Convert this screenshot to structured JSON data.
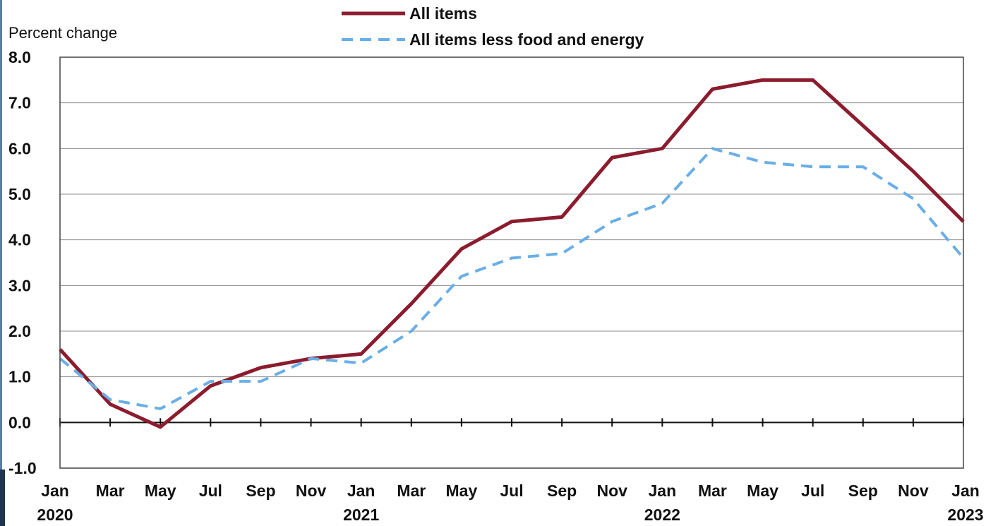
{
  "chart_data": {
    "type": "line",
    "ylabel": "Percent change",
    "ylim": [
      -1.0,
      8.0
    ],
    "yticks": [
      "-1.0",
      "0.0",
      "1.0",
      "2.0",
      "3.0",
      "4.0",
      "5.0",
      "6.0",
      "7.0",
      "8.0"
    ],
    "grid": true,
    "legend_position": "top-center",
    "x_tick_labels": [
      {
        "month": "Jan",
        "year": "2020"
      },
      {
        "month": "Mar",
        "year": ""
      },
      {
        "month": "May",
        "year": ""
      },
      {
        "month": "Jul",
        "year": ""
      },
      {
        "month": "Sep",
        "year": ""
      },
      {
        "month": "Nov",
        "year": ""
      },
      {
        "month": "Jan",
        "year": "2021"
      },
      {
        "month": "Mar",
        "year": ""
      },
      {
        "month": "May",
        "year": ""
      },
      {
        "month": "Jul",
        "year": ""
      },
      {
        "month": "Sep",
        "year": ""
      },
      {
        "month": "Nov",
        "year": ""
      },
      {
        "month": "Jan",
        "year": "2022"
      },
      {
        "month": "Mar",
        "year": ""
      },
      {
        "month": "May",
        "year": ""
      },
      {
        "month": "Jul",
        "year": ""
      },
      {
        "month": "Sep",
        "year": ""
      },
      {
        "month": "Nov",
        "year": ""
      },
      {
        "month": "Jan",
        "year": "2023"
      }
    ],
    "series": [
      {
        "name": "All items",
        "color": "#8b1c2e",
        "style": "solid",
        "values": [
          1.6,
          0.4,
          -0.1,
          0.8,
          1.2,
          1.4,
          1.5,
          2.6,
          3.8,
          4.4,
          4.5,
          5.8,
          6.0,
          7.3,
          7.5,
          7.5,
          6.5,
          5.5,
          4.4
        ]
      },
      {
        "name": "All items less food and energy",
        "color": "#6aaee6",
        "style": "dashed",
        "values": [
          1.4,
          0.5,
          0.3,
          0.9,
          0.9,
          1.4,
          1.3,
          2.0,
          3.2,
          3.6,
          3.7,
          4.4,
          4.8,
          6.0,
          5.7,
          5.6,
          5.6,
          4.9,
          3.6
        ]
      }
    ]
  }
}
